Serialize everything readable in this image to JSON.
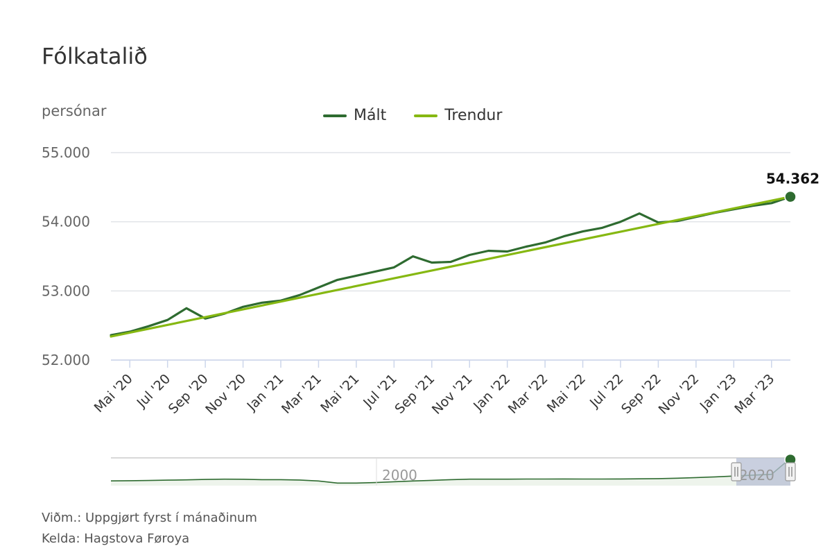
{
  "title": "Fólkatalið",
  "y_unit": "persónar",
  "legend": [
    {
      "label": "Mált",
      "color": "#2e6b30"
    },
    {
      "label": "Trendur",
      "color": "#86b812"
    }
  ],
  "footnote": "Viðm.: Uppgjørt fyrst í mánaðinum",
  "source": "Kelda: Hagstova Føroya",
  "colors": {
    "measured": "#2e6b30",
    "trend": "#86b812",
    "grid": "#e1e4e8",
    "navigator_mask": "#b7bfd4"
  },
  "chart_data": {
    "type": "line",
    "title": "Fólkatalið",
    "ylabel": "persónar",
    "ylim": [
      52000,
      55000
    ],
    "yticks": [
      52000,
      53000,
      54000,
      55000
    ],
    "ytick_labels": [
      "52.000",
      "53.000",
      "54.000",
      "55.000"
    ],
    "x": [
      "Apr '20",
      "Mai '20",
      "Jun '20",
      "Jul '20",
      "Aug '20",
      "Sep '20",
      "Okt '20",
      "Nov '20",
      "Des '20",
      "Jan '21",
      "Feb '21",
      "Mar '21",
      "Apr '21",
      "Mai '21",
      "Jun '21",
      "Jul '21",
      "Aug '21",
      "Sep '21",
      "Okt '21",
      "Nov '21",
      "Des '21",
      "Jan '22",
      "Feb '22",
      "Mar '22",
      "Apr '22",
      "Mai '22",
      "Jun '22",
      "Jul '22",
      "Aug '22",
      "Sep '22",
      "Okt '22",
      "Nov '22",
      "Des '22",
      "Jan '23",
      "Feb '23",
      "Mar '23",
      "Apr '23"
    ],
    "xtick_labels": [
      "Mai '20",
      "Jul '20",
      "Sep '20",
      "Nov '20",
      "Jan '21",
      "Mar '21",
      "Mai '21",
      "Jul '21",
      "Sep '21",
      "Nov '21",
      "Jan '22",
      "Mar '22",
      "Mai '22",
      "Jul '22",
      "Sep '22",
      "Nov '22",
      "Jan '23",
      "Mar '23"
    ],
    "series": [
      {
        "name": "Mált",
        "values": [
          52360,
          52410,
          52490,
          52580,
          52750,
          52600,
          52670,
          52770,
          52830,
          52860,
          52940,
          53050,
          53160,
          53220,
          53280,
          53340,
          53500,
          53410,
          53420,
          53520,
          53580,
          53570,
          53640,
          53700,
          53790,
          53860,
          53910,
          54000,
          54120,
          53990,
          54010,
          54070,
          54130,
          54180,
          54230,
          54270,
          54362
        ]
      },
      {
        "name": "Trendur",
        "start": 52340,
        "end": 54362
      }
    ],
    "last_point_label": "54.362",
    "navigator": {
      "labels": [
        "2000",
        "2020"
      ],
      "series": [
        52160,
        52180,
        52200,
        52230,
        52260,
        52300,
        52330,
        52320,
        52280,
        52280,
        52250,
        52150,
        51950,
        51950,
        52000,
        52080,
        52150,
        52210,
        52280,
        52330,
        52330,
        52330,
        52340,
        52340,
        52350,
        52340,
        52340,
        52350,
        52360,
        52380,
        52420,
        52480,
        52550,
        52630,
        52720,
        52800,
        54362
      ]
    },
    "grid": true,
    "legend_position": "top-center"
  }
}
